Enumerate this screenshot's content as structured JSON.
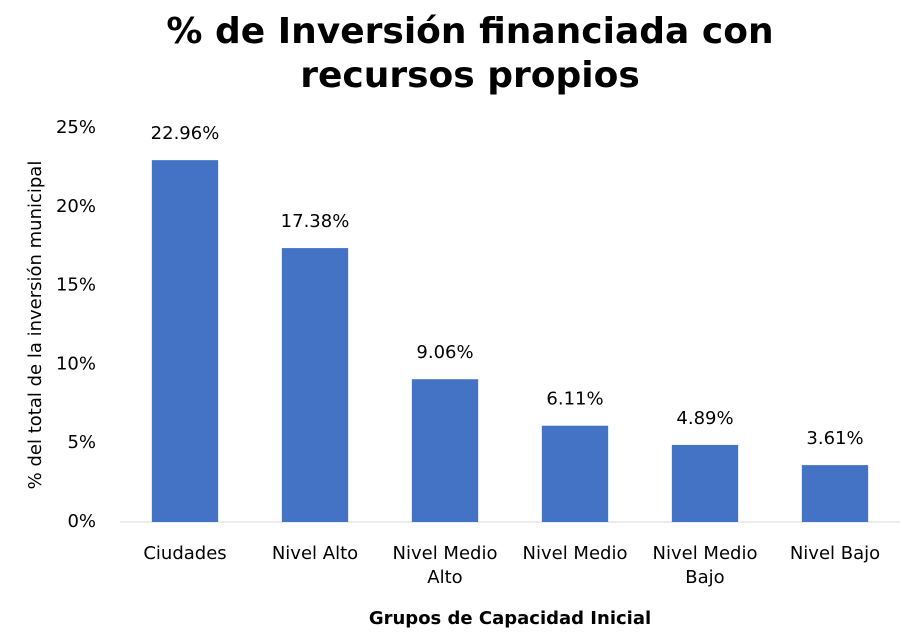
{
  "chart_data": {
    "type": "bar",
    "title": "% de Inversión financiada con recursos propios",
    "x_label": "Grupos de Capacidad Inicial",
    "y_label": "% del total de la inversión municipal",
    "categories": [
      "Ciudades",
      "Nivel Alto",
      "Nivel Medio Alto",
      "Nivel Medio",
      "Nivel Medio Bajo",
      "Nivel Bajo"
    ],
    "values": [
      22.96,
      17.38,
      9.06,
      6.11,
      4.89,
      3.61
    ],
    "value_labels": [
      "22.96%",
      "17.38%",
      "9.06%",
      "6.11%",
      "4.89%",
      "3.61%"
    ],
    "color": "#4472c4",
    "ylim": [
      0,
      25
    ],
    "yticks": [
      {
        "value": 0,
        "label": "0%"
      },
      {
        "value": 5,
        "label": "5%"
      },
      {
        "value": 10,
        "label": "10%"
      },
      {
        "value": 15,
        "label": "15%"
      },
      {
        "value": 20,
        "label": "20%"
      },
      {
        "value": 25,
        "label": "25%"
      }
    ],
    "grid": false
  }
}
